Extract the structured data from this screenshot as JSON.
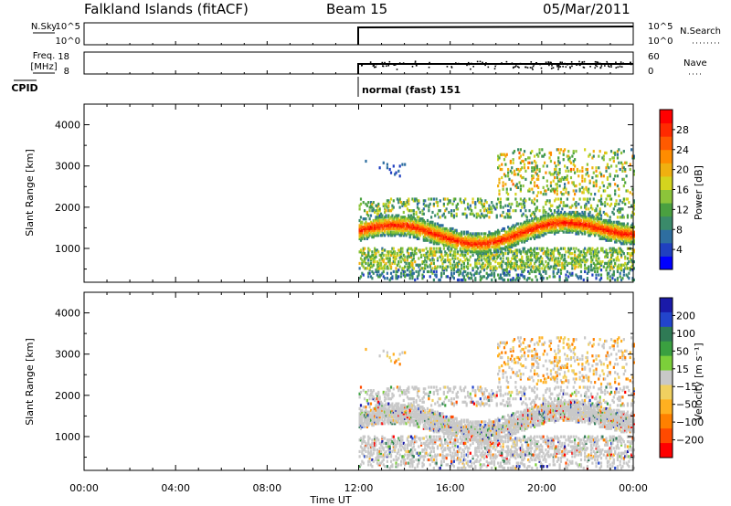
{
  "header": {
    "station": "Falkland Islands (fitACF)",
    "beam": "Beam 15",
    "date": "05/Mar/2011"
  },
  "status_panels": {
    "nsky_label": "N.Sky",
    "nsky_ticks": [
      "10^5",
      "10^0"
    ],
    "nsearch_label": "N.Search",
    "nsearch_ticks": [
      "10^5",
      "10^0"
    ],
    "freq_label": "Freq.",
    "freq_unit": "[MHz]",
    "freq_ticks": [
      "18",
      "8"
    ],
    "nave_label": "Nave",
    "nave_ticks": [
      "60",
      "0"
    ],
    "cpid_label": "CPID",
    "cpid_text": "normal (fast) 151"
  },
  "chart_data": [
    {
      "type": "heatmap",
      "name": "power",
      "ylabel": "Slant Range [km]",
      "xlabel": "Time UT",
      "x_ticks": [
        "00:00",
        "04:00",
        "08:00",
        "12:00",
        "16:00",
        "20:00",
        "00:00"
      ],
      "x_range_hours": [
        0,
        24
      ],
      "y_ticks": [
        1000,
        2000,
        3000,
        4000
      ],
      "ylim": [
        180,
        4500
      ],
      "colorbar_label": "Power [dB]",
      "colorbar_ticks": [
        "4",
        "8",
        "12",
        "16",
        "20",
        "24",
        "28"
      ],
      "colorbar_range": [
        0,
        30
      ],
      "colors": [
        "#0000ff",
        "#2040c0",
        "#2e6ea0",
        "#3a8a6a",
        "#4aa040",
        "#8cc43a",
        "#d4d41e",
        "#f0b010",
        "#ff8c00",
        "#ff5a00",
        "#ff2a00",
        "#ff0000"
      ],
      "data_start_hour": 12.0
    },
    {
      "type": "heatmap",
      "name": "velocity",
      "ylabel": "Slant Range [km]",
      "xlabel": "Time UT",
      "x_ticks": [
        "00:00",
        "04:00",
        "08:00",
        "12:00",
        "16:00",
        "20:00",
        "00:00"
      ],
      "x_range_hours": [
        0,
        24
      ],
      "y_ticks": [
        1000,
        2000,
        3000,
        4000
      ],
      "ylim": [
        180,
        4500
      ],
      "colorbar_label": "Velocity [m s⁻¹]",
      "colorbar_ticks": [
        "200",
        "100",
        "50",
        "15",
        "−15",
        "−50",
        "−100",
        "−200"
      ],
      "colorbar_range": [
        -250,
        250
      ],
      "colors": [
        "#1a1aa8",
        "#2244cc",
        "#2f7a55",
        "#3aa040",
        "#7ccf3a",
        "#c8c8c8",
        "#f0d060",
        "#ffb020",
        "#ff8000",
        "#ff4a00",
        "#ff0000"
      ],
      "data_start_hour": 12.0
    }
  ],
  "footer": {
    "xlabel": "Time UT"
  }
}
